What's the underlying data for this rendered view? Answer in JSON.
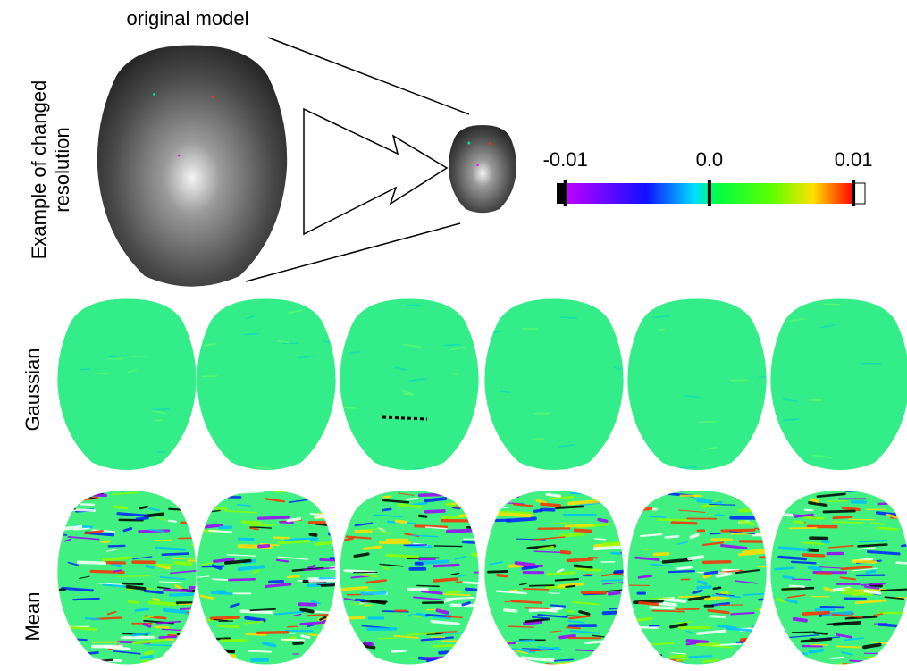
{
  "original_label": "original model",
  "side_label": [
    "Example of changed",
    "resolution"
  ],
  "colorbar": {
    "lim": [
      -0.0106,
      0.0108
    ],
    "ticks": [
      -0.01,
      {
        "value": 0,
        "label": "0.0"
      },
      0.01
    ]
  },
  "rows": [
    "Gaussian",
    "Mean"
  ]
}
